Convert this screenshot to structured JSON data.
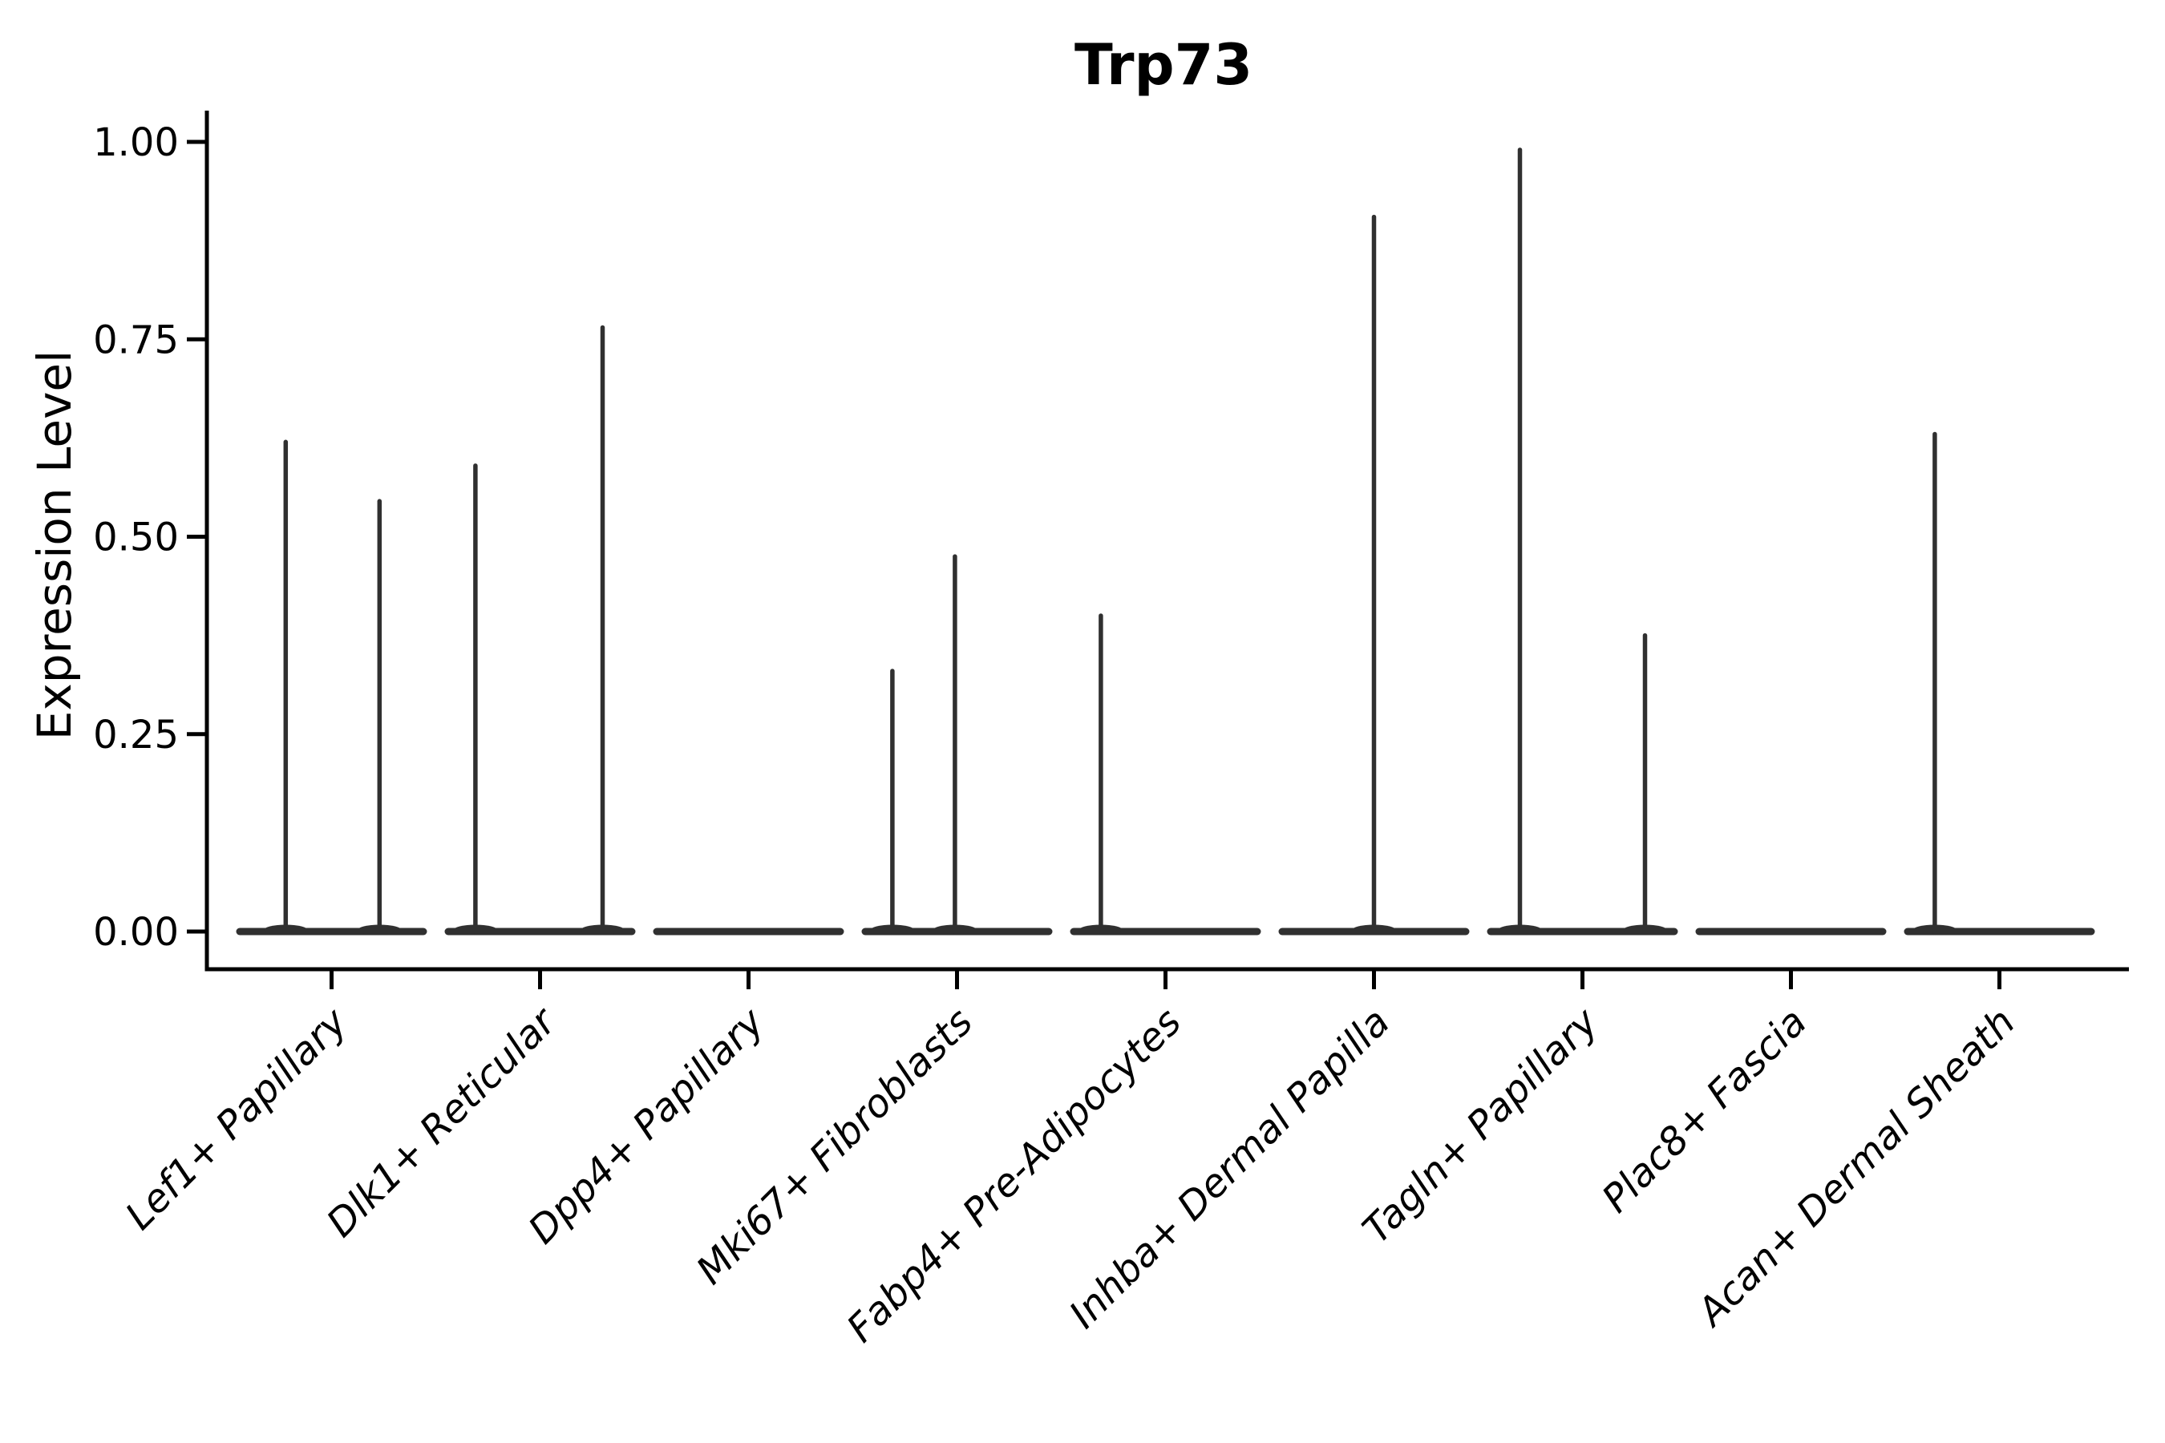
{
  "chart_data": {
    "type": "violin",
    "title": "Trp73",
    "ylabel": "Expression Level",
    "xlabel": "",
    "ylim": [
      0,
      1.05
    ],
    "grid": false,
    "legend": "none",
    "yticks": [
      {
        "label": "0.00",
        "value": 0.0
      },
      {
        "label": "0.25",
        "value": 0.25
      },
      {
        "label": "0.50",
        "value": 0.5
      },
      {
        "label": "0.75",
        "value": 0.75
      },
      {
        "label": "1.00",
        "value": 1.0
      }
    ],
    "categories": [
      "Lef1+ Papillary",
      "Dlk1+ Reticular",
      "Dpp4+ Papillary",
      "Mki67+ Fibroblasts",
      "Fabp4+ Pre-Adipocytes",
      "Inhba+ Dermal Papilla",
      "Tagln+ Papillary",
      "Plac8+ Fascia",
      "Acan+ Dermal Sheath"
    ],
    "violins": [
      {
        "category": "Lef1+ Papillary",
        "baseline_value": 0.0,
        "spikes": [
          {
            "offset": -0.22,
            "value": 0.62
          },
          {
            "offset": 0.23,
            "value": 0.545
          }
        ]
      },
      {
        "category": "Dlk1+ Reticular",
        "baseline_value": 0.0,
        "spikes": [
          {
            "offset": -0.31,
            "value": 0.59
          },
          {
            "offset": 0.3,
            "value": 0.765
          }
        ]
      },
      {
        "category": "Dpp4+ Papillary",
        "baseline_value": 0.0,
        "spikes": []
      },
      {
        "category": "Mki67+ Fibroblasts",
        "baseline_value": 0.0,
        "spikes": [
          {
            "offset": -0.31,
            "value": 0.33
          },
          {
            "offset": -0.01,
            "value": 0.475
          }
        ]
      },
      {
        "category": "Fabp4+ Pre-Adipocytes",
        "baseline_value": 0.0,
        "spikes": [
          {
            "offset": -0.31,
            "value": 0.4
          }
        ]
      },
      {
        "category": "Inhba+ Dermal Papilla",
        "baseline_value": 0.0,
        "spikes": [
          {
            "offset": 0.0,
            "value": 0.905
          }
        ]
      },
      {
        "category": "Tagln+ Papillary",
        "baseline_value": 0.0,
        "spikes": [
          {
            "offset": -0.3,
            "value": 0.99
          },
          {
            "offset": 0.3,
            "value": 0.375
          }
        ]
      },
      {
        "category": "Plac8+ Fascia",
        "baseline_value": 0.0,
        "spikes": []
      },
      {
        "category": "Acan+ Dermal Sheath",
        "baseline_value": 0.0,
        "spikes": [
          {
            "offset": -0.31,
            "value": 0.63
          }
        ]
      }
    ]
  },
  "style": {
    "ink": "#000000",
    "violin_color": "#303030",
    "background": "#ffffff"
  }
}
